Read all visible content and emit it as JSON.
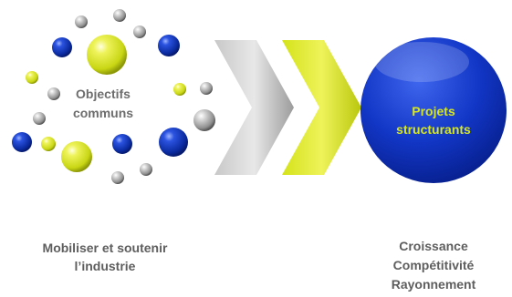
{
  "source": {
    "label_line1": "Objectifs",
    "label_line2": "communs",
    "caption_line1": "Mobiliser et soutenir",
    "caption_line2": "l’industrie"
  },
  "target": {
    "label_line1": "Projets",
    "label_line2": "structurants",
    "outcomes": [
      "Croissance",
      "Compétitivité",
      "Rayonnement"
    ]
  },
  "colors": {
    "blue": "#0d2fb4",
    "lime": "#d6e61f",
    "silver": "#a9a9a9",
    "text_gray": "#5e5e5e"
  }
}
